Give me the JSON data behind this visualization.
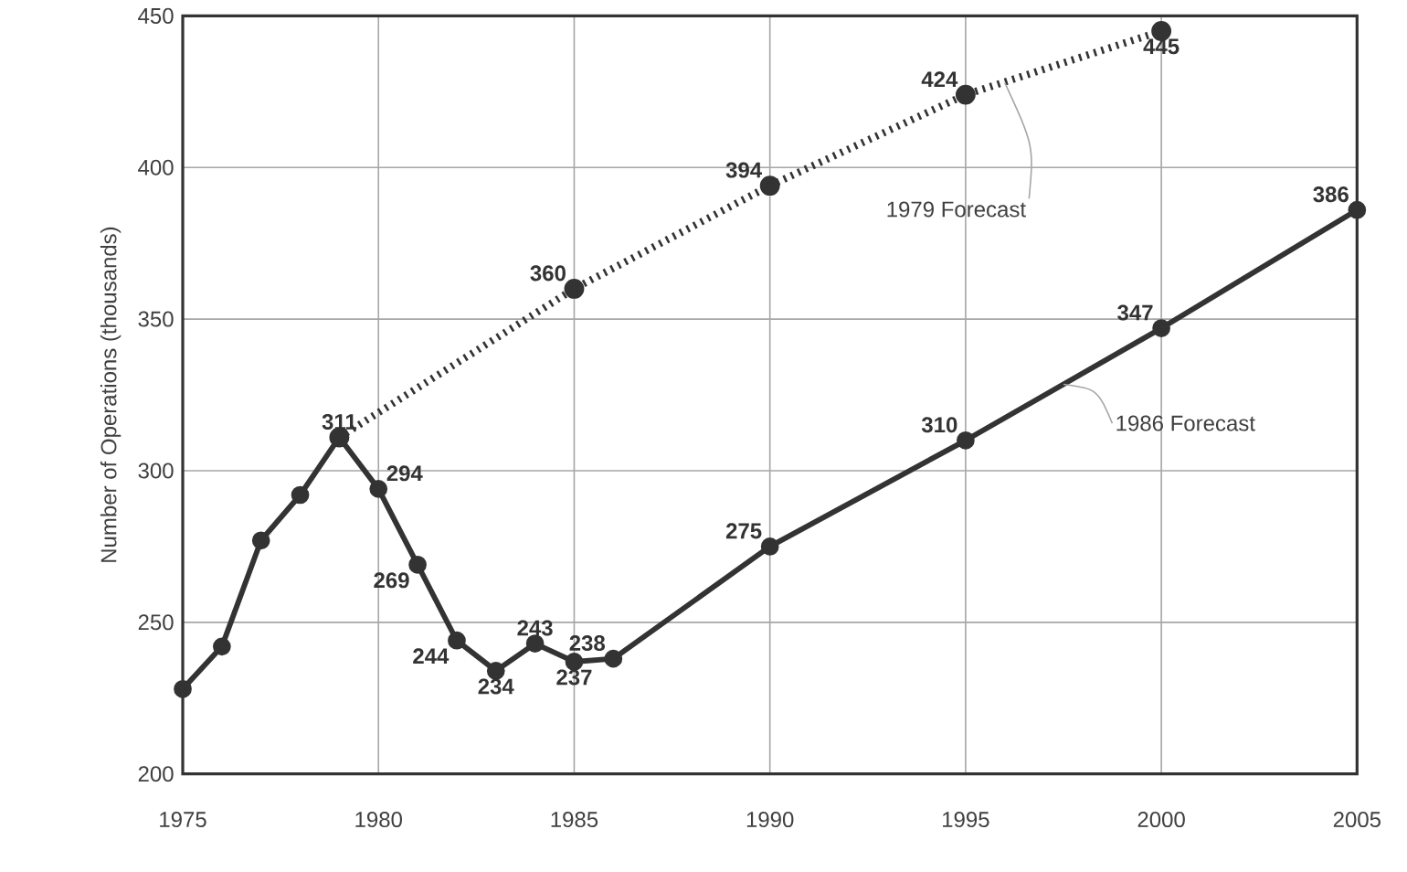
{
  "chart_data": {
    "type": "line",
    "ylabel": "Number of Operations (thousands)",
    "xlim": [
      1975,
      2005
    ],
    "ylim": [
      200,
      450
    ],
    "xticks": [
      1975,
      1980,
      1985,
      1990,
      1995,
      2000,
      2005
    ],
    "yticks": [
      200,
      250,
      300,
      350,
      400,
      450
    ],
    "grid": true,
    "marker": "circle",
    "series": [
      {
        "color": "#333333",
        "line_style": "solid",
        "x": [
          1975,
          1976,
          1977,
          1978,
          1979,
          1980,
          1981,
          1982,
          1983,
          1984,
          1985,
          1986,
          1990,
          1995,
          2000,
          2005
        ],
        "values": [
          228,
          242,
          277,
          292,
          311,
          294,
          269,
          244,
          234,
          243,
          237,
          238,
          275,
          310,
          347,
          386
        ],
        "value_labels": [
          null,
          null,
          null,
          null,
          "311",
          "294",
          "269",
          "244",
          "234",
          "243",
          "237",
          "238",
          "275",
          "310",
          "347",
          "386"
        ]
      },
      {
        "color": "#333333",
        "line_style": "dotted",
        "x": [
          1979,
          1985,
          1990,
          1995,
          2000
        ],
        "values": [
          311,
          360,
          394,
          424,
          445
        ],
        "value_labels": [
          null,
          "360",
          "394",
          "424",
          "445"
        ]
      }
    ],
    "annotations": [
      {
        "text": "1979 Forecast",
        "x": 1996,
        "y": 428
      },
      {
        "text": "1986 Forecast",
        "x": 1997.5,
        "y": 328.5
      }
    ]
  }
}
